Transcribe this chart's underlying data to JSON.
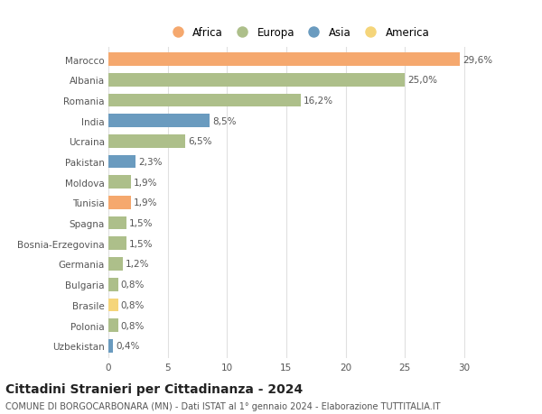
{
  "countries": [
    "Marocco",
    "Albania",
    "Romania",
    "India",
    "Ucraina",
    "Pakistan",
    "Moldova",
    "Tunisia",
    "Spagna",
    "Bosnia-Erzegovina",
    "Germania",
    "Bulgaria",
    "Brasile",
    "Polonia",
    "Uzbekistan"
  ],
  "values": [
    29.6,
    25.0,
    16.2,
    8.5,
    6.5,
    2.3,
    1.9,
    1.9,
    1.5,
    1.5,
    1.2,
    0.8,
    0.8,
    0.8,
    0.4
  ],
  "labels": [
    "29,6%",
    "25,0%",
    "16,2%",
    "8,5%",
    "6,5%",
    "2,3%",
    "1,9%",
    "1,9%",
    "1,5%",
    "1,5%",
    "1,2%",
    "0,8%",
    "0,8%",
    "0,8%",
    "0,4%"
  ],
  "continents": [
    "Africa",
    "Europa",
    "Europa",
    "Asia",
    "Europa",
    "Asia",
    "Europa",
    "Africa",
    "Europa",
    "Europa",
    "Europa",
    "Europa",
    "America",
    "Europa",
    "Asia"
  ],
  "colors": {
    "Africa": "#F5A86E",
    "Europa": "#ADBF8A",
    "Asia": "#6A9BBF",
    "America": "#F5D57A"
  },
  "legend_order": [
    "Africa",
    "Europa",
    "Asia",
    "America"
  ],
  "title": "Cittadini Stranieri per Cittadinanza - 2024",
  "subtitle": "COMUNE DI BORGOCARBONARA (MN) - Dati ISTAT al 1° gennaio 2024 - Elaborazione TUTTITALIA.IT",
  "xlim": [
    0,
    32
  ],
  "xticks": [
    0,
    5,
    10,
    15,
    20,
    25,
    30
  ],
  "background_color": "#ffffff",
  "bar_height": 0.65,
  "label_fontsize": 7.5,
  "title_fontsize": 10,
  "subtitle_fontsize": 7,
  "tick_fontsize": 7.5,
  "ytick_fontsize": 7.5,
  "grid_color": "#e0e0e0",
  "legend_fontsize": 8.5
}
